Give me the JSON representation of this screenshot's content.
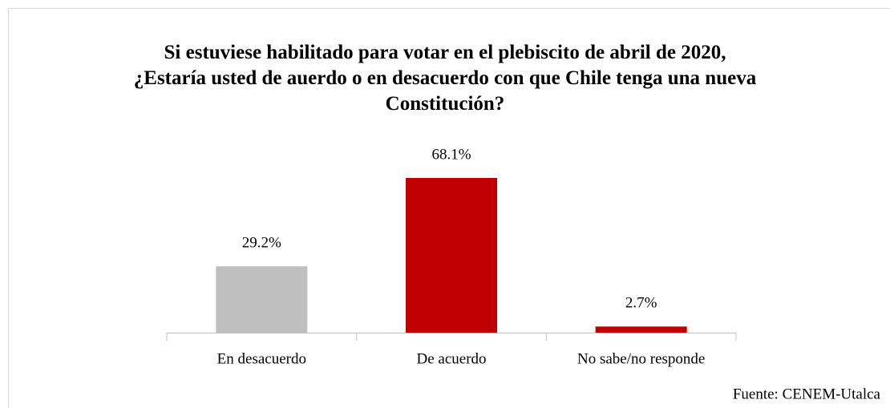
{
  "chart_data": {
    "type": "bar",
    "title": "Si estuviese habilitado para votar en el plebiscito de abril de 2020, ¿Estaría usted de auerdo o en desacuerdo con que Chile tenga una nueva Constitución?",
    "categories": [
      "En desacuerdo",
      "De acuerdo",
      "No sabe/no responde"
    ],
    "values": [
      29.2,
      68.1,
      2.7
    ],
    "value_labels": [
      "29.2%",
      "68.1%",
      "2.7%"
    ],
    "colors": [
      "#bfbfbf",
      "#c00000",
      "#c00000"
    ],
    "source": "Fuente: CENEM-Utalca"
  }
}
